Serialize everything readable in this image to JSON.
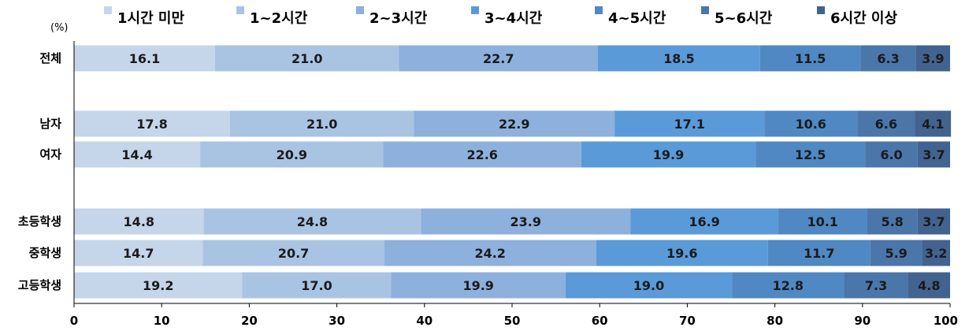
{
  "chart_data": {
    "type": "bar",
    "orientation": "horizontal",
    "stacked": true,
    "unit_label": "(%)",
    "xlim": [
      0,
      100
    ],
    "x_ticks": [
      "0",
      "10",
      "20",
      "30",
      "40",
      "50",
      "60",
      "70",
      "80",
      "90",
      "100"
    ],
    "legend_position": "top",
    "categories": [
      "전체",
      "남자",
      "여자",
      "초등학생",
      "중학생",
      "고등학생"
    ],
    "series": [
      {
        "name": "1시간 미만",
        "color": "#c5d5ea",
        "values": [
          16.1,
          17.8,
          14.4,
          14.8,
          14.7,
          19.2
        ]
      },
      {
        "name": "1~2시간",
        "color": "#a9c3e3",
        "values": [
          21.0,
          21.0,
          20.9,
          24.8,
          20.7,
          17.0
        ]
      },
      {
        "name": "2~3시간",
        "color": "#8db0dc",
        "values": [
          22.7,
          22.9,
          22.6,
          23.9,
          24.2,
          19.9
        ]
      },
      {
        "name": "3~4시간",
        "color": "#5a9ad8",
        "values": [
          18.5,
          17.1,
          19.9,
          16.9,
          19.6,
          19.0
        ]
      },
      {
        "name": "4~5시간",
        "color": "#4f88c2",
        "values": [
          11.5,
          10.6,
          12.5,
          10.1,
          11.7,
          12.8
        ]
      },
      {
        "name": "5~6시간",
        "color": "#4a76aa",
        "values": [
          6.3,
          6.6,
          6.0,
          5.8,
          5.9,
          7.3
        ]
      },
      {
        "name": "6시간 이상",
        "color": "#42638f",
        "values": [
          3.9,
          4.1,
          3.7,
          3.7,
          3.2,
          4.8
        ]
      }
    ]
  }
}
